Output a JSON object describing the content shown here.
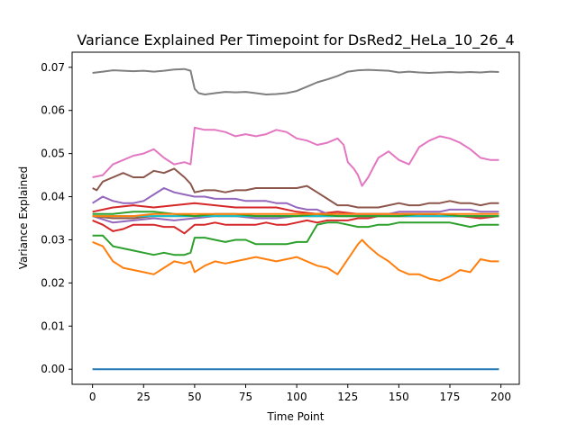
{
  "chart_data": {
    "type": "line",
    "title": "Variance Explained Per Timepoint for DsRed2_HeLa_10_26_4",
    "xlabel": "Time Point",
    "ylabel": "Variance Explained",
    "xlim": [
      -10,
      209
    ],
    "ylim": [
      -0.0035,
      0.0735
    ],
    "xticks": [
      0,
      25,
      50,
      75,
      100,
      125,
      150,
      175,
      200
    ],
    "yticks": [
      0.0,
      0.01,
      0.02,
      0.03,
      0.04,
      0.05,
      0.06,
      0.07
    ],
    "ytick_labels": [
      "0.00",
      "0.01",
      "0.02",
      "0.03",
      "0.04",
      "0.05",
      "0.06",
      "0.07"
    ],
    "grid": false,
    "series": [
      {
        "color": "#1f77b4",
        "x": [
          0,
          199
        ],
        "y": [
          0.0,
          0.0
        ]
      },
      {
        "color": "#ff7f0e",
        "x": [
          0,
          5,
          10,
          15,
          20,
          25,
          30,
          35,
          40,
          45,
          48,
          50,
          55,
          60,
          65,
          70,
          75,
          80,
          85,
          90,
          95,
          100,
          105,
          110,
          115,
          120,
          125,
          130,
          132,
          135,
          140,
          145,
          150,
          155,
          160,
          165,
          170,
          175,
          180,
          185,
          190,
          195,
          199
        ],
        "y": [
          0.0295,
          0.0285,
          0.025,
          0.0235,
          0.023,
          0.0225,
          0.022,
          0.0235,
          0.025,
          0.0245,
          0.025,
          0.0225,
          0.024,
          0.025,
          0.0245,
          0.025,
          0.0255,
          0.026,
          0.0255,
          0.025,
          0.0255,
          0.026,
          0.025,
          0.024,
          0.0235,
          0.022,
          0.0255,
          0.029,
          0.03,
          0.0285,
          0.0265,
          0.025,
          0.023,
          0.022,
          0.022,
          0.021,
          0.0205,
          0.0215,
          0.023,
          0.0225,
          0.0255,
          0.025,
          0.025
        ]
      },
      {
        "color": "#2ca02c",
        "x": [
          0,
          5,
          10,
          15,
          20,
          25,
          30,
          35,
          40,
          45,
          48,
          50,
          55,
          60,
          65,
          70,
          75,
          80,
          85,
          90,
          95,
          100,
          105,
          110,
          115,
          120,
          125,
          130,
          135,
          140,
          145,
          150,
          155,
          160,
          165,
          170,
          175,
          180,
          185,
          190,
          195,
          199
        ],
        "y": [
          0.031,
          0.031,
          0.0285,
          0.028,
          0.0275,
          0.027,
          0.0265,
          0.027,
          0.0265,
          0.0265,
          0.027,
          0.0305,
          0.0305,
          0.03,
          0.0295,
          0.03,
          0.03,
          0.029,
          0.029,
          0.029,
          0.029,
          0.0295,
          0.0295,
          0.0335,
          0.034,
          0.034,
          0.0335,
          0.033,
          0.033,
          0.0335,
          0.0335,
          0.034,
          0.034,
          0.034,
          0.034,
          0.034,
          0.034,
          0.0335,
          0.033,
          0.0335,
          0.0335,
          0.0335
        ]
      },
      {
        "color": "#d62728",
        "x": [
          0,
          5,
          10,
          15,
          20,
          25,
          30,
          35,
          40,
          45,
          50,
          55,
          60,
          65,
          70,
          75,
          80,
          85,
          90,
          95,
          100,
          105,
          110,
          115,
          120,
          125,
          130,
          135,
          140,
          145,
          150,
          155,
          160,
          165,
          170,
          175,
          180,
          185,
          190,
          195,
          199
        ],
        "y": [
          0.0345,
          0.0335,
          0.032,
          0.0325,
          0.0335,
          0.0335,
          0.0335,
          0.033,
          0.033,
          0.0315,
          0.0335,
          0.0335,
          0.034,
          0.0335,
          0.0335,
          0.0335,
          0.0335,
          0.034,
          0.0335,
          0.0335,
          0.034,
          0.0345,
          0.034,
          0.0345,
          0.0345,
          0.0345,
          0.035,
          0.035,
          0.0355,
          0.0355,
          0.0355,
          0.0355,
          0.0355,
          0.0355,
          0.0355,
          0.0355,
          0.0355,
          0.0355,
          0.0355,
          0.0355,
          0.0355
        ]
      },
      {
        "color": "#d62728",
        "x": [
          0,
          10,
          20,
          30,
          40,
          50,
          60,
          70,
          80,
          90,
          100,
          110,
          120,
          130,
          140,
          150,
          160,
          170,
          180,
          190,
          199
        ],
        "y": [
          0.0365,
          0.0375,
          0.038,
          0.0375,
          0.038,
          0.0385,
          0.038,
          0.0375,
          0.0375,
          0.0375,
          0.0365,
          0.036,
          0.0365,
          0.036,
          0.036,
          0.036,
          0.036,
          0.0355,
          0.0355,
          0.035,
          0.0355
        ]
      },
      {
        "color": "#9467bd",
        "x": [
          0,
          5,
          10,
          15,
          20,
          25,
          30,
          35,
          40,
          45,
          50,
          55,
          60,
          65,
          70,
          75,
          80,
          85,
          90,
          95,
          100,
          105,
          110,
          115,
          120,
          125,
          130,
          135,
          140,
          145,
          150,
          155,
          160,
          165,
          170,
          175,
          180,
          185,
          190,
          195,
          199
        ],
        "y": [
          0.0385,
          0.04,
          0.039,
          0.0385,
          0.0385,
          0.039,
          0.0405,
          0.042,
          0.041,
          0.0405,
          0.04,
          0.04,
          0.0395,
          0.0395,
          0.0395,
          0.039,
          0.039,
          0.039,
          0.0385,
          0.0385,
          0.0375,
          0.037,
          0.037,
          0.036,
          0.036,
          0.036,
          0.036,
          0.036,
          0.036,
          0.036,
          0.0365,
          0.0365,
          0.0365,
          0.0365,
          0.0365,
          0.037,
          0.037,
          0.037,
          0.0365,
          0.0365,
          0.0365
        ]
      },
      {
        "color": "#9467bd",
        "x": [
          0,
          10,
          20,
          30,
          40,
          50,
          60,
          70,
          80,
          90,
          100,
          110,
          120,
          130,
          140,
          150,
          160,
          170,
          180,
          190,
          199
        ],
        "y": [
          0.0355,
          0.034,
          0.0345,
          0.035,
          0.0345,
          0.035,
          0.0355,
          0.0355,
          0.035,
          0.035,
          0.0355,
          0.0355,
          0.0355,
          0.0355,
          0.0355,
          0.0355,
          0.0355,
          0.0355,
          0.0355,
          0.0355,
          0.0355
        ]
      },
      {
        "color": "#8c564b",
        "x": [
          0,
          2,
          5,
          10,
          15,
          20,
          25,
          30,
          35,
          40,
          45,
          48,
          50,
          55,
          60,
          65,
          70,
          75,
          80,
          85,
          90,
          95,
          100,
          105,
          110,
          115,
          120,
          125,
          130,
          135,
          140,
          145,
          150,
          155,
          160,
          165,
          170,
          175,
          180,
          185,
          190,
          195,
          199
        ],
        "y": [
          0.042,
          0.0415,
          0.0435,
          0.0445,
          0.0455,
          0.0445,
          0.0445,
          0.046,
          0.0455,
          0.0465,
          0.0445,
          0.043,
          0.041,
          0.0415,
          0.0415,
          0.041,
          0.0415,
          0.0415,
          0.042,
          0.042,
          0.042,
          0.042,
          0.042,
          0.0425,
          0.041,
          0.0395,
          0.038,
          0.038,
          0.0375,
          0.0375,
          0.0375,
          0.038,
          0.0385,
          0.038,
          0.038,
          0.0385,
          0.0385,
          0.039,
          0.0385,
          0.0385,
          0.038,
          0.0385,
          0.0385
        ]
      },
      {
        "color": "#8c564b",
        "x": [
          0,
          10,
          20,
          30,
          40,
          50,
          60,
          70,
          80,
          90,
          100,
          110,
          120,
          130,
          140,
          150,
          160,
          170,
          180,
          190,
          199
        ],
        "y": [
          0.0355,
          0.035,
          0.035,
          0.0355,
          0.0355,
          0.0355,
          0.0355,
          0.0355,
          0.0355,
          0.0355,
          0.0355,
          0.0355,
          0.0355,
          0.0355,
          0.0355,
          0.0355,
          0.0355,
          0.0355,
          0.0355,
          0.0355,
          0.0355
        ]
      },
      {
        "color": "#e377c2",
        "x": [
          0,
          5,
          8,
          10,
          15,
          20,
          25,
          30,
          35,
          40,
          45,
          48,
          50,
          55,
          60,
          65,
          70,
          75,
          80,
          85,
          90,
          95,
          100,
          105,
          110,
          115,
          120,
          123,
          125,
          128,
          130,
          132,
          135,
          140,
          145,
          150,
          155,
          160,
          165,
          170,
          175,
          180,
          185,
          190,
          195,
          199
        ],
        "y": [
          0.0445,
          0.045,
          0.0465,
          0.0475,
          0.0485,
          0.0495,
          0.05,
          0.051,
          0.049,
          0.0475,
          0.048,
          0.0475,
          0.056,
          0.0555,
          0.0555,
          0.055,
          0.054,
          0.0545,
          0.054,
          0.0545,
          0.0555,
          0.055,
          0.0535,
          0.053,
          0.052,
          0.0525,
          0.0535,
          0.052,
          0.048,
          0.0465,
          0.045,
          0.0425,
          0.0445,
          0.049,
          0.0505,
          0.0485,
          0.0475,
          0.0515,
          0.053,
          0.054,
          0.0535,
          0.0525,
          0.051,
          0.049,
          0.0485,
          0.0485
        ]
      },
      {
        "color": "#7f7f7f",
        "x": [
          0,
          5,
          10,
          15,
          20,
          25,
          30,
          35,
          40,
          45,
          48,
          50,
          52,
          55,
          60,
          65,
          70,
          75,
          80,
          85,
          90,
          95,
          100,
          105,
          110,
          115,
          120,
          125,
          130,
          135,
          140,
          145,
          150,
          155,
          160,
          165,
          170,
          175,
          180,
          185,
          190,
          195,
          199
        ],
        "y": [
          0.0687,
          0.069,
          0.0693,
          0.0692,
          0.0691,
          0.0692,
          0.069,
          0.0692,
          0.0695,
          0.0696,
          0.0692,
          0.065,
          0.064,
          0.0637,
          0.064,
          0.0643,
          0.0642,
          0.0643,
          0.064,
          0.0637,
          0.0638,
          0.064,
          0.0645,
          0.0655,
          0.0665,
          0.0672,
          0.068,
          0.069,
          0.0693,
          0.0694,
          0.0693,
          0.0692,
          0.0688,
          0.069,
          0.0688,
          0.0687,
          0.0688,
          0.0689,
          0.0688,
          0.0689,
          0.0688,
          0.069,
          0.0689
        ]
      },
      {
        "color": "#bcbd22",
        "x": [
          0,
          20,
          40,
          60,
          80,
          100,
          120,
          140,
          160,
          180,
          199
        ],
        "y": [
          0.0355,
          0.0355,
          0.0355,
          0.0355,
          0.0355,
          0.0355,
          0.0355,
          0.0355,
          0.0355,
          0.0355,
          0.0355
        ]
      },
      {
        "color": "#17becf",
        "x": [
          0,
          20,
          40,
          60,
          80,
          100,
          120,
          140,
          160,
          180,
          199
        ],
        "y": [
          0.0355,
          0.0355,
          0.0355,
          0.0355,
          0.0355,
          0.0355,
          0.0355,
          0.0355,
          0.0355,
          0.0355,
          0.0355
        ]
      },
      {
        "color": "#2ca02c",
        "x": [
          0,
          10,
          20,
          30,
          40,
          50,
          60,
          70,
          80,
          90,
          100,
          110,
          120,
          130,
          140,
          150,
          160,
          170,
          180,
          190,
          199
        ],
        "y": [
          0.036,
          0.036,
          0.0365,
          0.0365,
          0.036,
          0.0355,
          0.036,
          0.036,
          0.0355,
          0.0355,
          0.0355,
          0.036,
          0.0355,
          0.0355,
          0.0355,
          0.0355,
          0.036,
          0.036,
          0.0355,
          0.0355,
          0.0355
        ]
      },
      {
        "color": "#ff7f0e",
        "x": [
          0,
          10,
          20,
          30,
          40,
          50,
          60,
          70,
          80,
          90,
          100,
          110,
          120,
          130,
          140,
          150,
          160,
          170,
          180,
          190,
          199
        ],
        "y": [
          0.0355,
          0.0355,
          0.0355,
          0.036,
          0.036,
          0.036,
          0.036,
          0.036,
          0.036,
          0.036,
          0.036,
          0.036,
          0.036,
          0.036,
          0.036,
          0.036,
          0.036,
          0.036,
          0.036,
          0.036,
          0.036
        ]
      }
    ]
  }
}
